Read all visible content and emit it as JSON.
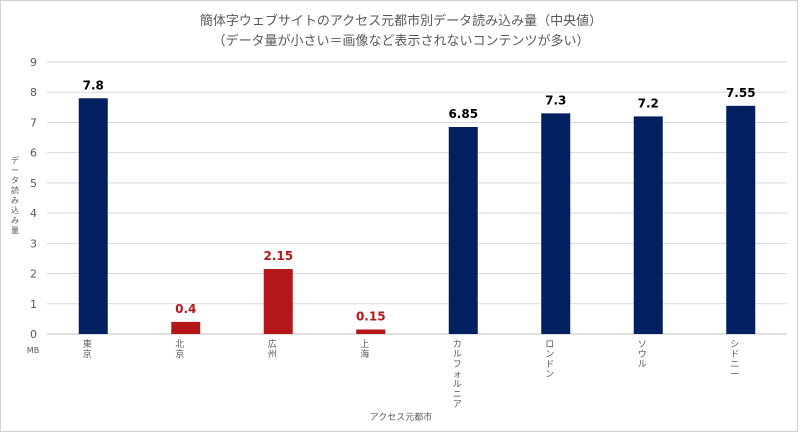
{
  "chart_data": {
    "type": "bar",
    "title": "簡体字ウェブサイトのアクセス元都市別データ読み込み量（中央値）",
    "subtitle": "（データ量が小さい＝画像など表示されないコンテンツが多い）",
    "ylabel": "データ読み込み量",
    "yunit": "MB",
    "xlabel": "アクセス元都市",
    "ylim": [
      0,
      9
    ],
    "yticks": [
      "0",
      "1",
      "2",
      "3",
      "4",
      "5",
      "6",
      "7",
      "8",
      "9"
    ],
    "grid": true,
    "categories": [
      "東京",
      "北京",
      "広州",
      "上海",
      "カルフォルニア",
      "ロンドン",
      "ソウル",
      "シドニー"
    ],
    "values": [
      7.8,
      0.4,
      2.15,
      0.15,
      6.85,
      7.3,
      7.2,
      7.55
    ],
    "value_labels": [
      "7.8",
      "0.4",
      "2.15",
      "0.15",
      "6.85",
      "7.3",
      "7.2",
      "7.55"
    ],
    "bar_colors": [
      "#002060",
      "#b41717",
      "#b41717",
      "#b41717",
      "#002060",
      "#002060",
      "#002060",
      "#002060"
    ],
    "label_colors": [
      "#000000",
      "#b41717",
      "#b41717",
      "#b41717",
      "#000000",
      "#000000",
      "#000000",
      "#000000"
    ],
    "grid_color": "#d9d9d9",
    "text_color": "#595959"
  }
}
